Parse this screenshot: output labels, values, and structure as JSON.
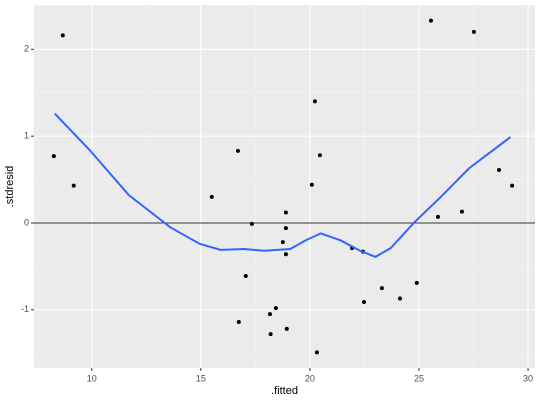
{
  "chart_data": {
    "type": "scatter",
    "xlabel": ".fitted",
    "ylabel": ".stdresid",
    "xlim": [
      7.35,
      30.32
    ],
    "ylim": [
      -1.67,
      2.51
    ],
    "xticks": [
      10,
      15,
      20,
      25,
      30
    ],
    "yticks": [
      -1,
      0,
      1,
      2
    ],
    "grid": true,
    "color": "#000000",
    "x": [
      8.26,
      8.67,
      9.17,
      15.5,
      16.7,
      16.74,
      17.06,
      17.34,
      18.17,
      18.2,
      18.44,
      18.76,
      18.9,
      18.9,
      18.9,
      18.94,
      20.09,
      20.23,
      20.32,
      20.46,
      21.93,
      22.43,
      22.48,
      23.3,
      24.13,
      24.9,
      25.55,
      25.87,
      26.97,
      27.52,
      28.67,
      29.27
    ],
    "y": [
      0.77,
      2.16,
      0.43,
      0.3,
      0.83,
      -1.14,
      -0.61,
      -0.01,
      -1.05,
      -1.28,
      -0.98,
      -0.22,
      0.12,
      -0.06,
      -0.36,
      -1.22,
      0.44,
      1.4,
      -1.49,
      0.78,
      -0.29,
      -0.33,
      -0.91,
      -0.75,
      -0.87,
      -0.69,
      2.33,
      0.07,
      0.13,
      2.2,
      0.61,
      0.43
    ],
    "smooth": {
      "color": "#3366ff",
      "x": [
        8.3,
        9.9,
        11.7,
        13.6,
        14.95,
        15.9,
        17.0,
        17.9,
        19.1,
        19.8,
        20.5,
        21.4,
        22.3,
        23.0,
        23.7,
        24.8,
        26.0,
        27.3,
        29.2
      ],
      "y": [
        1.26,
        0.84,
        0.32,
        -0.05,
        -0.24,
        -0.31,
        -0.3,
        -0.32,
        -0.3,
        -0.2,
        -0.12,
        -0.2,
        -0.32,
        -0.39,
        -0.29,
        0.01,
        0.3,
        0.63,
        0.99
      ]
    },
    "hline": 0
  }
}
